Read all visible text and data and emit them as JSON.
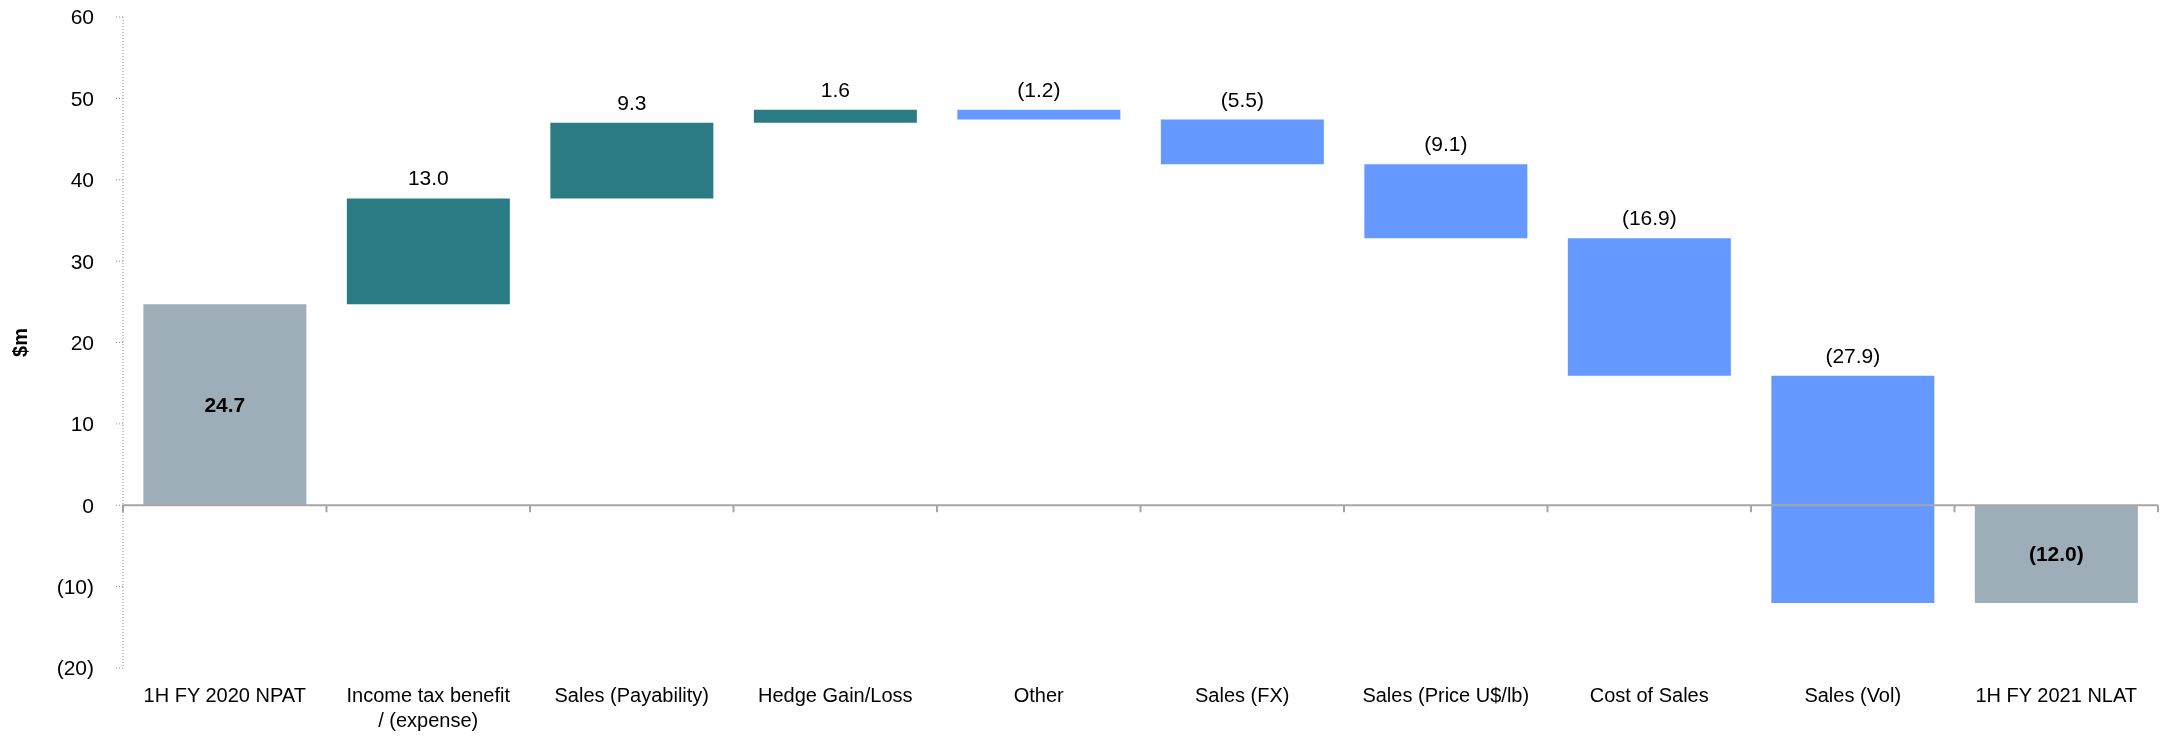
{
  "chart_data": {
    "type": "bar",
    "ylabel": "$m",
    "categories": [
      "1H FY 2020 NPAT",
      "Income tax benefit / (expense)",
      "Sales (Payability)",
      "Hedge Gain/Loss",
      "Other",
      "Sales (FX)",
      "Sales (Price U$/lb)",
      "Cost of Sales",
      "Sales (Vol)",
      "1H FY 2021 NLAT"
    ],
    "values": [
      24.7,
      13.0,
      9.3,
      1.6,
      -1.2,
      -5.5,
      -9.1,
      -16.9,
      -27.9,
      -12.0
    ],
    "base": [
      0,
      24.7,
      37.7,
      47.0,
      48.6,
      47.4,
      41.9,
      32.8,
      15.9,
      0
    ],
    "colors": [
      "#9eaeb8",
      "#2a7b84",
      "#2a7b84",
      "#2a7b84",
      "#6699ff",
      "#6699ff",
      "#6699ff",
      "#6699ff",
      "#6699ff",
      "#9eaeb8"
    ],
    "value_labels": [
      "24.7",
      "13.0",
      "9.3",
      "1.6",
      "(1.2)",
      "(5.5)",
      "(9.1)",
      "(16.9)",
      "(27.9)",
      "(12.0)"
    ],
    "ref_lines": [
      {
        "axis": "y",
        "value": 0,
        "color": "#a6a6a6"
      }
    ],
    "ylim": [
      -20,
      60
    ],
    "yticks": [
      {
        "value": -20,
        "label": "(20)"
      },
      {
        "value": -10,
        "label": "(10)"
      },
      0,
      10,
      20,
      30,
      40,
      50,
      60
    ]
  }
}
